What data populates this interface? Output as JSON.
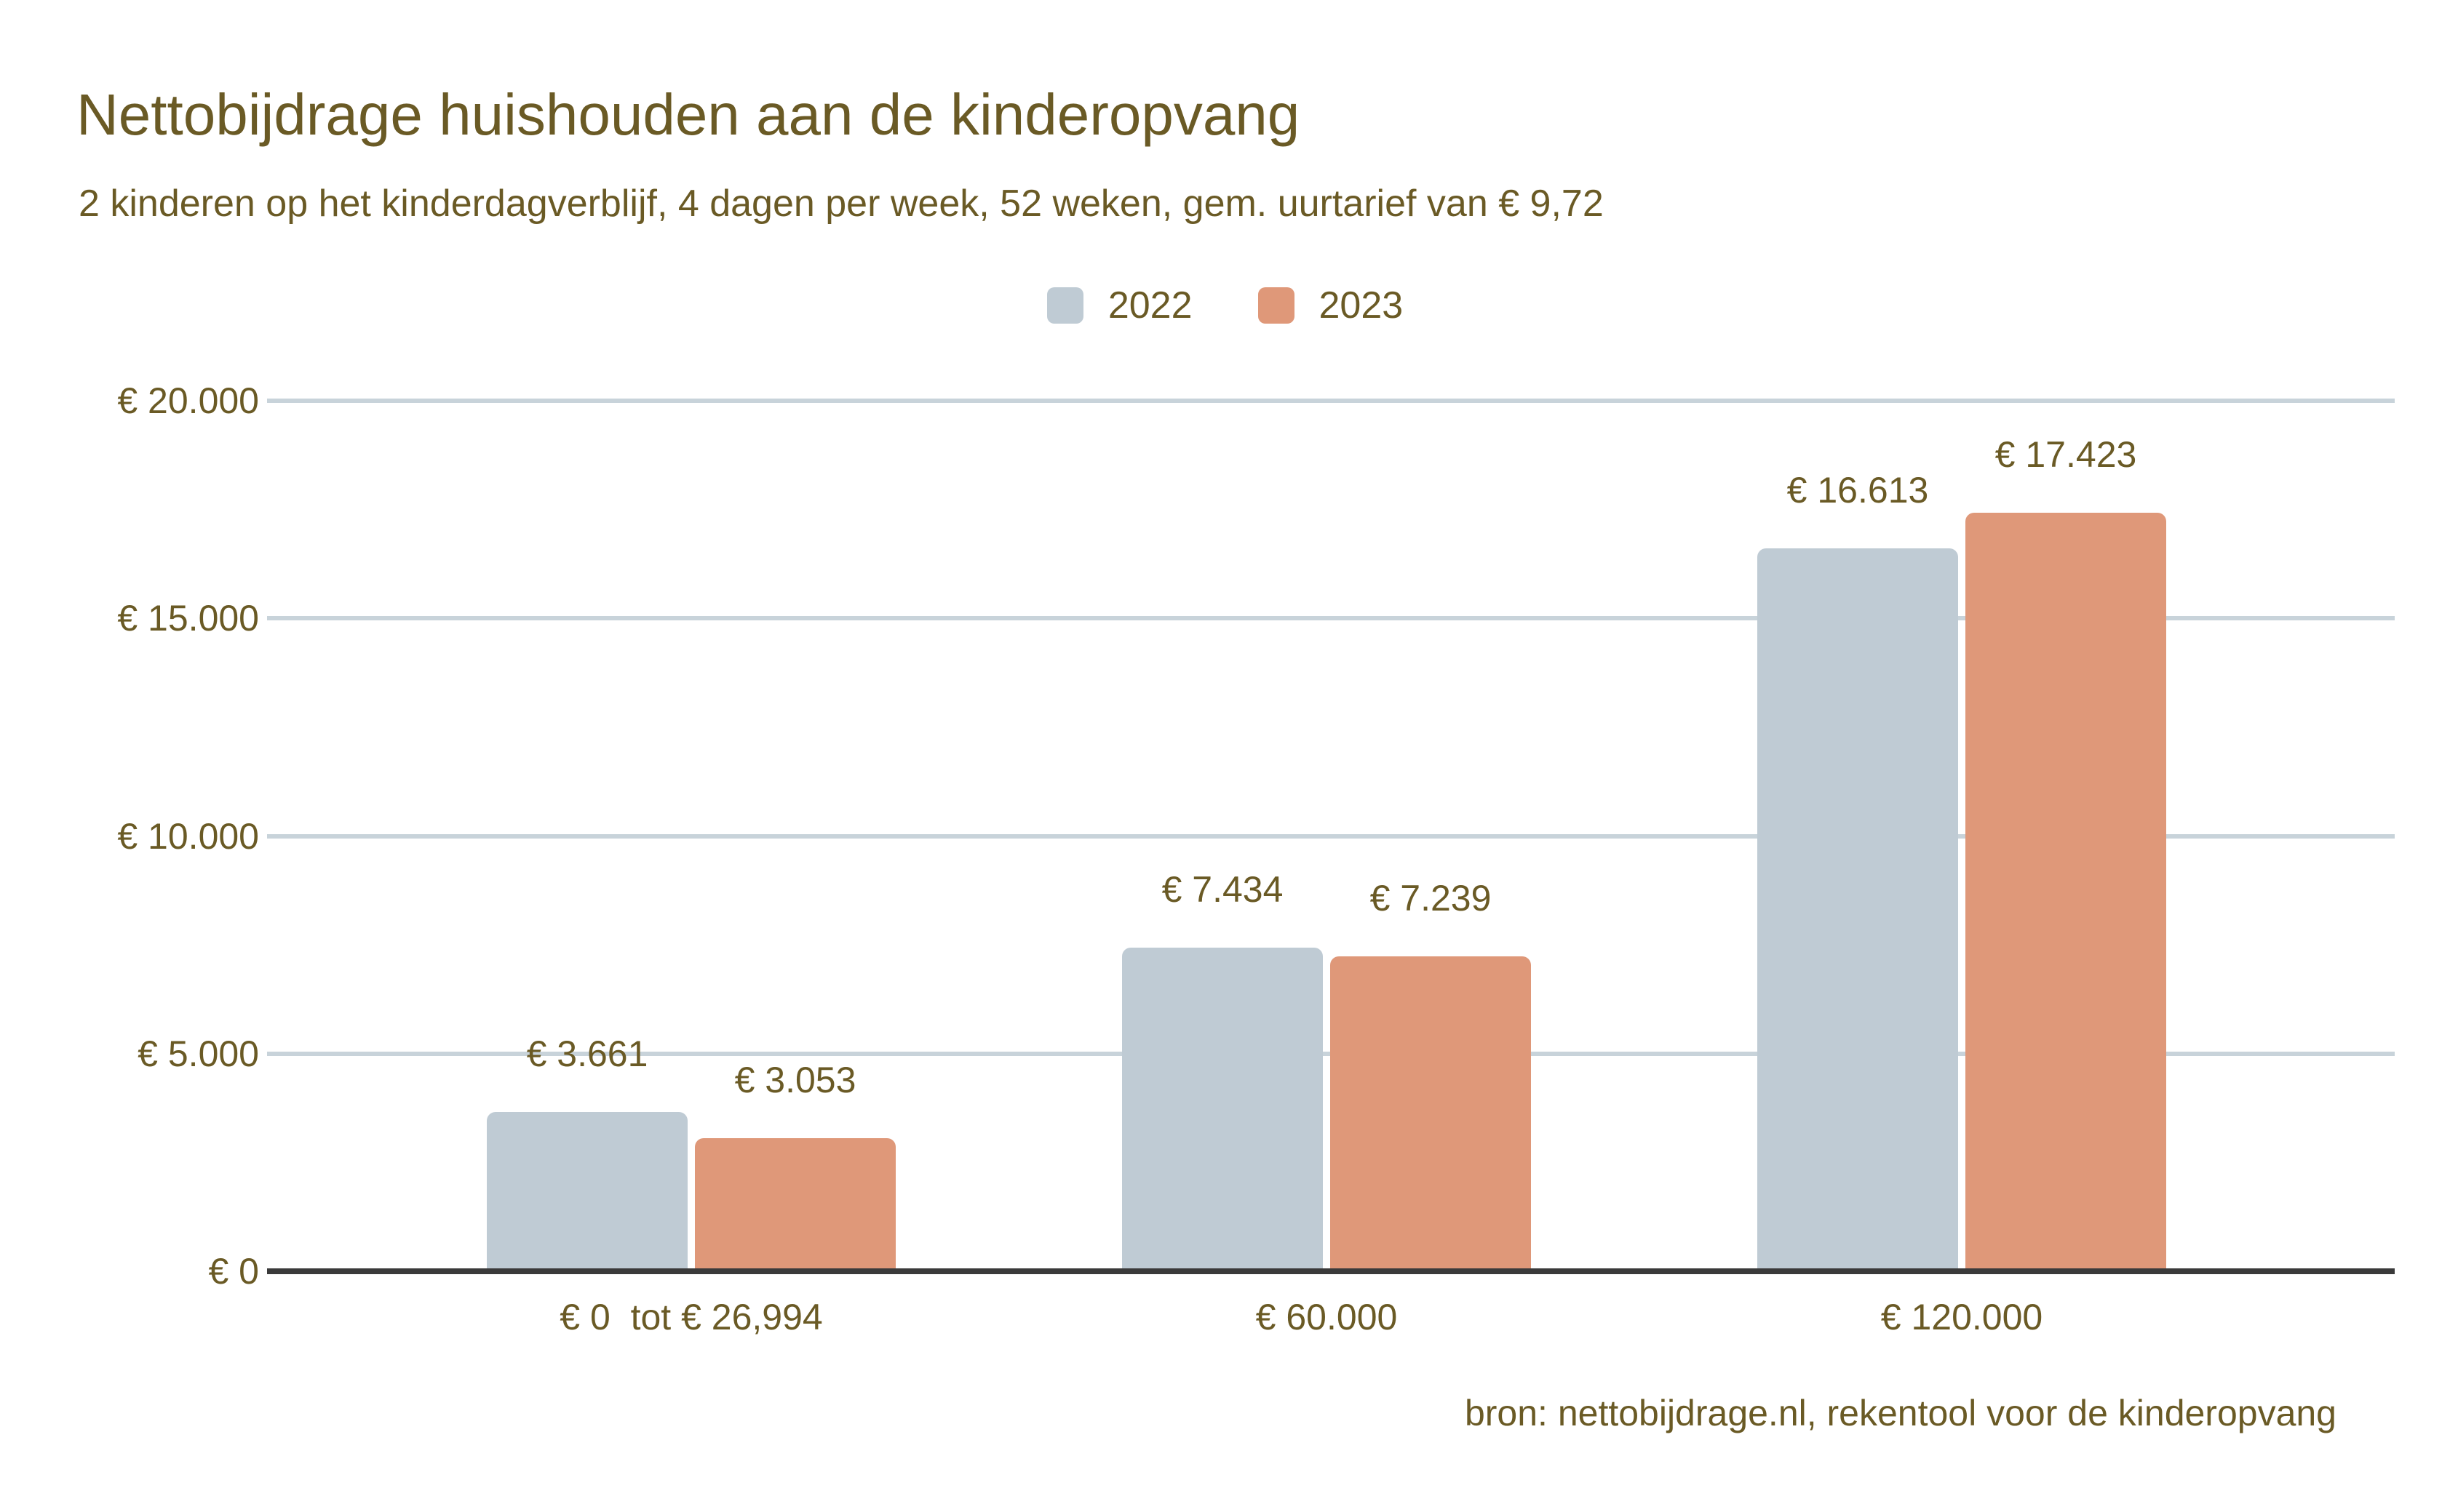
{
  "source_note": "bron: nettobijdrage.nl, rekentool voor de kinderopvang",
  "colors": {
    "text": "#6a5a25",
    "series_2022": "#bfcbd4",
    "series_2023": "#df9879",
    "gridline": "#c8d3da",
    "axis_line": "#3a3a3a",
    "background": "#ffffff"
  },
  "chart_data": {
    "type": "bar",
    "title": "Nettobijdrage huishouden aan de kinderopvang",
    "subtitle": "2 kinderen op het kinderdagverblijf, 4 dagen per week, 52 weken, gem. uurtarief van € 9,72",
    "categories": [
      "€ 0  tot € 26,994",
      "€ 60.000",
      "€ 120.000"
    ],
    "series": [
      {
        "name": "2022",
        "color": "#bfcbd4",
        "values": [
          3661,
          7434,
          16613
        ],
        "data_labels": [
          "€ 3.661",
          "€ 7.434",
          "€ 16.613"
        ]
      },
      {
        "name": "2023",
        "color": "#df9879",
        "values": [
          3053,
          7239,
          17423
        ],
        "data_labels": [
          "€ 3.053",
          "€ 7.239",
          "€ 17.423"
        ]
      }
    ],
    "xlabel": "",
    "ylabel": "",
    "y_axis": {
      "min": 0,
      "max": 20000,
      "ticks": [
        {
          "value": 0,
          "label": "€ 0"
        },
        {
          "value": 5000,
          "label": "€ 5.000"
        },
        {
          "value": 10000,
          "label": "€ 10.000"
        },
        {
          "value": 15000,
          "label": "€ 15.000"
        },
        {
          "value": 20000,
          "label": "€ 20.000"
        }
      ]
    },
    "grid": true,
    "legend_position": "top-center"
  }
}
